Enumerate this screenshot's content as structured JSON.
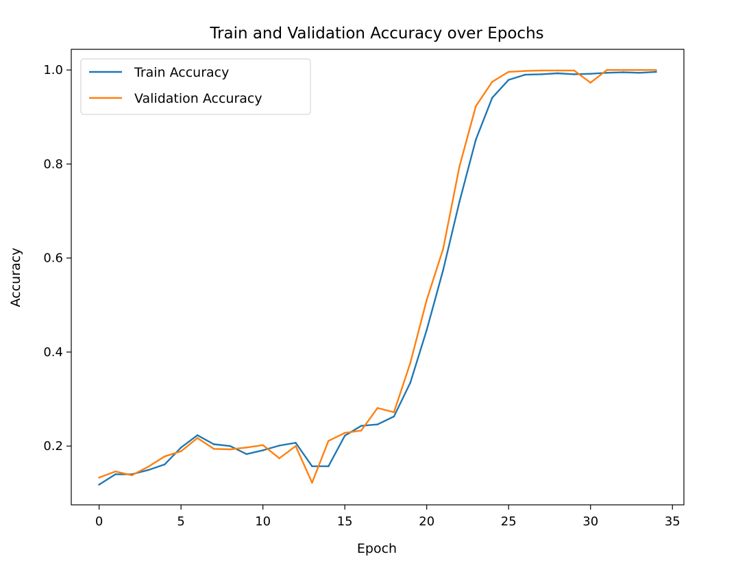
{
  "chart_data": {
    "type": "line",
    "title": "Train and Validation Accuracy over Epochs",
    "xlabel": "Epoch",
    "ylabel": "Accuracy",
    "xlim": [
      -1.7,
      35.7
    ],
    "ylim": [
      0.075,
      1.044
    ],
    "xticks": [
      0,
      5,
      10,
      15,
      20,
      25,
      30,
      35
    ],
    "yticks": [
      0.2,
      0.4,
      0.6,
      0.8,
      1.0
    ],
    "ytick_labels": [
      "0.2",
      "0.4",
      "0.6",
      "0.8",
      "1.0"
    ],
    "grid": false,
    "legend": "top-left",
    "x": [
      0,
      1,
      2,
      3,
      4,
      5,
      6,
      7,
      8,
      9,
      10,
      11,
      12,
      13,
      14,
      15,
      16,
      17,
      18,
      19,
      20,
      21,
      22,
      23,
      24,
      25,
      26,
      27,
      28,
      29,
      30,
      31,
      32,
      33,
      34
    ],
    "series": [
      {
        "name": "Train Accuracy",
        "color": "#1f77b4",
        "values": [
          0.118,
          0.14,
          0.14,
          0.149,
          0.161,
          0.197,
          0.223,
          0.204,
          0.2,
          0.183,
          0.191,
          0.201,
          0.207,
          0.157,
          0.157,
          0.222,
          0.243,
          0.246,
          0.263,
          0.335,
          0.447,
          0.574,
          0.72,
          0.852,
          0.941,
          0.979,
          0.99,
          0.991,
          0.993,
          0.991,
          0.992,
          0.994,
          0.995,
          0.994,
          0.996
        ]
      },
      {
        "name": "Validation Accuracy",
        "color": "#ff7f0e",
        "values": [
          0.133,
          0.146,
          0.138,
          0.156,
          0.178,
          0.189,
          0.217,
          0.194,
          0.193,
          0.197,
          0.202,
          0.174,
          0.2,
          0.122,
          0.211,
          0.228,
          0.233,
          0.281,
          0.272,
          0.377,
          0.511,
          0.619,
          0.795,
          0.923,
          0.975,
          0.996,
          0.998,
          0.999,
          0.999,
          0.999,
          0.973,
          1.0,
          1.0,
          1.0,
          1.0
        ]
      }
    ]
  }
}
